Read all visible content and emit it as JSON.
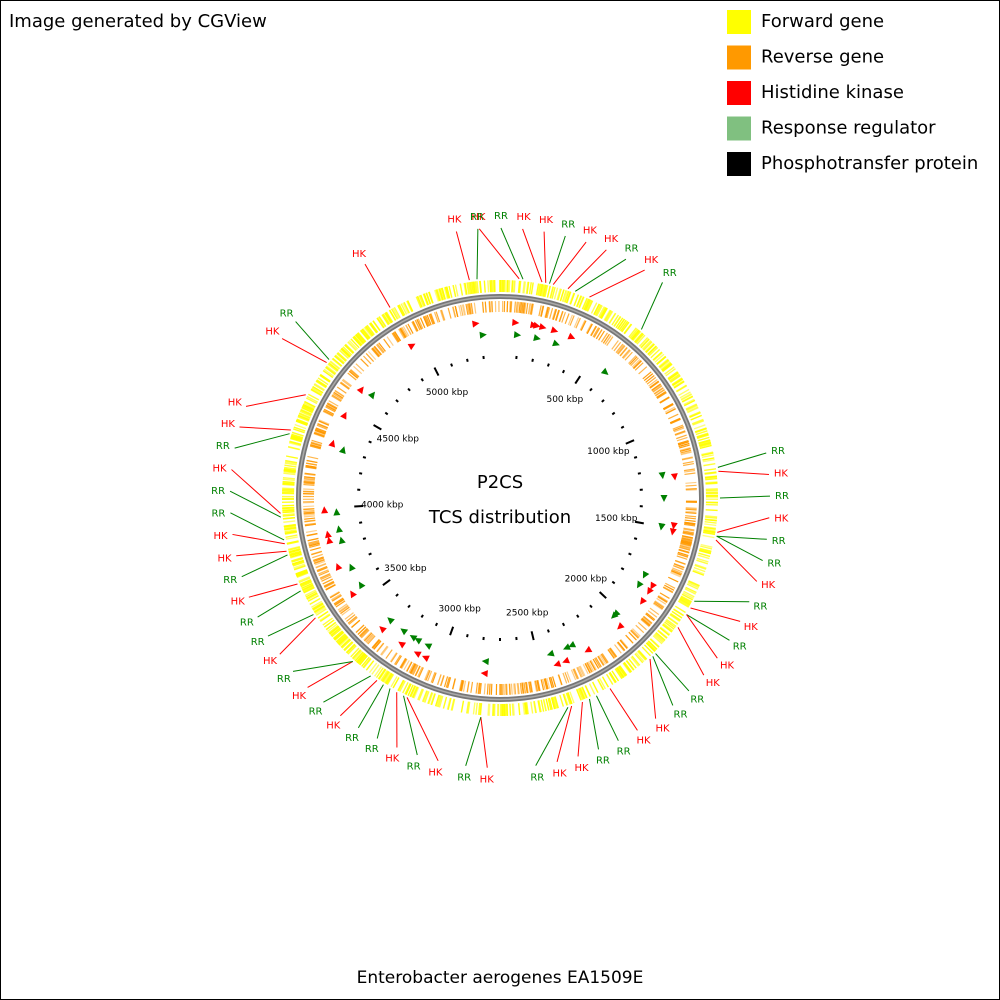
{
  "header": {
    "text": "Image generated by CGView"
  },
  "legend": {
    "items": [
      {
        "name": "Forward gene",
        "color": "#ffff00"
      },
      {
        "name": "Reverse gene",
        "color": "#ff9900"
      },
      {
        "name": "Histidine kinase",
        "color": "#ff0000"
      },
      {
        "name": "Response regulator",
        "color": "#80c080"
      },
      {
        "name": "Phosphotransfer protein",
        "color": "#000000"
      }
    ]
  },
  "map": {
    "title": "P2CS",
    "subtitle": "TCS distribution",
    "xlim": [
      0,
      5400
    ],
    "xticks": [
      {
        "value": 500,
        "label": "500 kbp"
      },
      {
        "value": 1000,
        "label": "1000 kbp"
      },
      {
        "value": 1500,
        "label": "1500 kbp"
      },
      {
        "value": 2000,
        "label": "2000 kbp"
      },
      {
        "value": 2500,
        "label": "2500 kbp"
      },
      {
        "value": 3000,
        "label": "3000 kbp"
      },
      {
        "value": 3500,
        "label": "3500 kbp"
      },
      {
        "value": 4000,
        "label": "4000 kbp"
      },
      {
        "value": 4500,
        "label": "4500 kbp"
      },
      {
        "value": 5000,
        "label": "5000 kbp"
      }
    ],
    "minor_xticks": [
      100,
      200,
      300,
      400,
      600,
      700,
      800,
      900,
      1100,
      1200,
      1300,
      1400,
      1600,
      1700,
      1800,
      1900,
      2100,
      2200,
      2300,
      2400,
      2600,
      2700,
      2800,
      2900,
      3100,
      3200,
      3300,
      3400,
      3600,
      3700,
      3800,
      3900,
      4100,
      4200,
      4300,
      4400,
      4600,
      4700,
      4800,
      4900,
      5100,
      5200,
      5300
    ],
    "features": [
      {
        "label": "HK",
        "position": 75,
        "color": "#ff0000"
      },
      {
        "label": "RR",
        "position": 90,
        "color": "#008000"
      },
      {
        "label": "HK",
        "position": 165,
        "color": "#ff0000"
      },
      {
        "label": "HK",
        "position": 180,
        "color": "#ff0000"
      },
      {
        "label": "RR",
        "position": 195,
        "color": "#008000"
      },
      {
        "label": "HK",
        "position": 210,
        "color": "#ff0000"
      },
      {
        "label": "HK",
        "position": 270,
        "color": "#ff0000"
      },
      {
        "label": "RR",
        "position": 300,
        "color": "#008000"
      },
      {
        "label": "HK",
        "position": 360,
        "color": "#ff0000"
      },
      {
        "label": "RR",
        "position": 600,
        "color": "#008000"
      },
      {
        "label": "RR",
        "position": 1230,
        "color": "#008000"
      },
      {
        "label": "HK",
        "position": 1245,
        "color": "#ff0000"
      },
      {
        "label": "RR",
        "position": 1350,
        "color": "#008000"
      },
      {
        "label": "HK",
        "position": 1485,
        "color": "#ff0000"
      },
      {
        "label": "RR",
        "position": 1500,
        "color": "#008000"
      },
      {
        "label": "RR",
        "position": 1500,
        "color": "#008000"
      },
      {
        "label": "HK",
        "position": 1515,
        "color": "#ff0000"
      },
      {
        "label": "RR",
        "position": 1770,
        "color": "#008000"
      },
      {
        "label": "HK",
        "position": 1800,
        "color": "#ff0000"
      },
      {
        "label": "RR",
        "position": 1830,
        "color": "#008000"
      },
      {
        "label": "HK",
        "position": 1830,
        "color": "#ff0000"
      },
      {
        "label": "HK",
        "position": 1890,
        "color": "#ff0000"
      },
      {
        "label": "RR",
        "position": 2025,
        "color": "#008000"
      },
      {
        "label": "RR",
        "position": 2040,
        "color": "#008000"
      },
      {
        "label": "HK",
        "position": 2055,
        "color": "#ff0000"
      },
      {
        "label": "HK",
        "position": 2250,
        "color": "#ff0000"
      },
      {
        "label": "RR",
        "position": 2310,
        "color": "#008000"
      },
      {
        "label": "RR",
        "position": 2340,
        "color": "#008000"
      },
      {
        "label": "HK",
        "position": 2370,
        "color": "#ff0000"
      },
      {
        "label": "HK",
        "position": 2415,
        "color": "#ff0000"
      },
      {
        "label": "RR",
        "position": 2430,
        "color": "#008000"
      },
      {
        "label": "HK",
        "position": 2775,
        "color": "#ff0000"
      },
      {
        "label": "RR",
        "position": 2775,
        "color": "#008000"
      },
      {
        "label": "HK",
        "position": 3075,
        "color": "#ff0000"
      },
      {
        "label": "RR",
        "position": 3090,
        "color": "#008000"
      },
      {
        "label": "HK",
        "position": 3120,
        "color": "#ff0000"
      },
      {
        "label": "RR",
        "position": 3150,
        "color": "#008000"
      },
      {
        "label": "RR",
        "position": 3180,
        "color": "#008000"
      },
      {
        "label": "HK",
        "position": 3210,
        "color": "#ff0000"
      },
      {
        "label": "RR",
        "position": 3240,
        "color": "#008000"
      },
      {
        "label": "HK",
        "position": 3330,
        "color": "#ff0000"
      },
      {
        "label": "RR",
        "position": 3330,
        "color": "#008000"
      },
      {
        "label": "HK",
        "position": 3555,
        "color": "#ff0000"
      },
      {
        "label": "RR",
        "position": 3570,
        "color": "#008000"
      },
      {
        "label": "RR",
        "position": 3675,
        "color": "#008000"
      },
      {
        "label": "HK",
        "position": 3705,
        "color": "#ff0000"
      },
      {
        "label": "RR",
        "position": 3825,
        "color": "#008000"
      },
      {
        "label": "HK",
        "position": 3840,
        "color": "#ff0000"
      },
      {
        "label": "HK",
        "position": 3870,
        "color": "#ff0000"
      },
      {
        "label": "RR",
        "position": 3885,
        "color": "#008000"
      },
      {
        "label": "RR",
        "position": 3975,
        "color": "#008000"
      },
      {
        "label": "HK",
        "position": 3990,
        "color": "#ff0000"
      },
      {
        "label": "RR",
        "position": 4305,
        "color": "#008000"
      },
      {
        "label": "HK",
        "position": 4320,
        "color": "#ff0000"
      },
      {
        "label": "HK",
        "position": 4470,
        "color": "#ff0000"
      },
      {
        "label": "HK",
        "position": 4620,
        "color": "#ff0000"
      },
      {
        "label": "RR",
        "position": 4635,
        "color": "#008000"
      },
      {
        "label": "HK",
        "position": 4950,
        "color": "#ff0000"
      },
      {
        "label": "HK",
        "position": 5280,
        "color": "#ff0000"
      },
      {
        "label": "RR",
        "position": 5310,
        "color": "#008000"
      }
    ]
  },
  "footer": {
    "text": "Enterobacter aerogenes EA1509E"
  }
}
